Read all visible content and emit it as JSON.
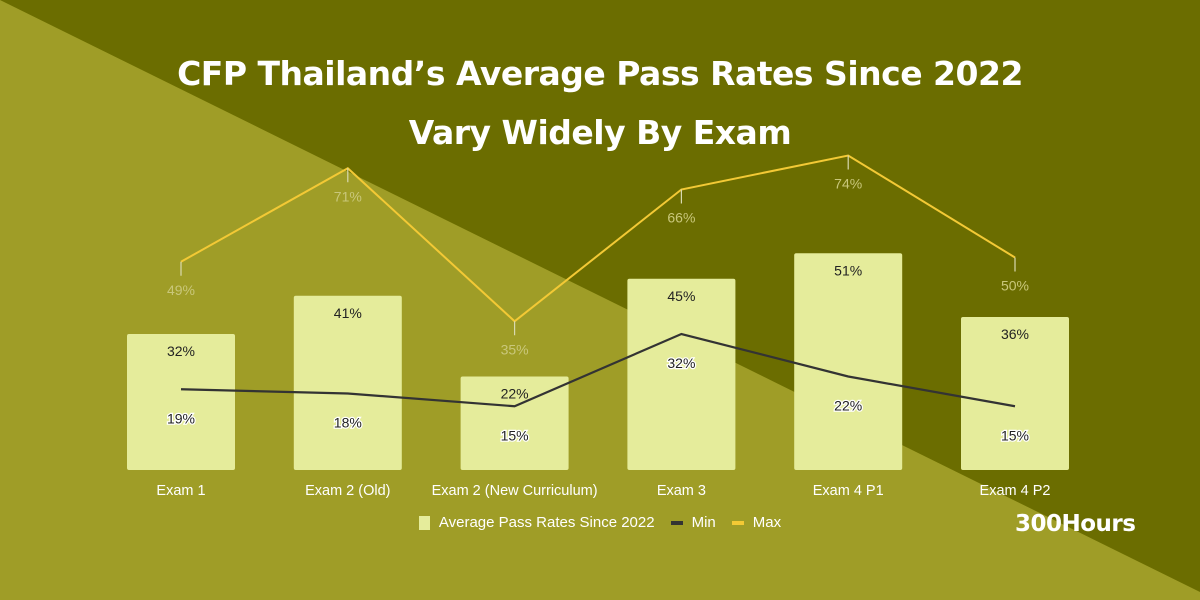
{
  "title": {
    "line1": "CFP Thailand’s Average Pass Rates Since 2022",
    "line2": "Vary Widely By Exam"
  },
  "brand": "300Hours",
  "colors": {
    "bg_dark": "#6b6d00",
    "bg_light": "#9f9d27",
    "bar": "#e5ec9b",
    "min_line": "#333333",
    "max_line": "#f3c935",
    "max_label": "#c9c77a",
    "text_dark": "#222222",
    "text_white": "#ffffff"
  },
  "legend": {
    "items": [
      {
        "label": "Average Pass Rates Since 2022",
        "kind": "box",
        "color": "#e5ec9b"
      },
      {
        "label": "Min",
        "kind": "line",
        "color": "#333333"
      },
      {
        "label": "Max",
        "kind": "line",
        "color": "#f3c935"
      }
    ]
  },
  "chart_data": {
    "type": "bar",
    "title": "CFP Thailand’s Average Pass Rates Since 2022 Vary Widely By Exam",
    "xlabel": "",
    "ylabel": "",
    "ylim": [
      0,
      100
    ],
    "grid": false,
    "legend_position": "bottom",
    "categories": [
      "Exam 1",
      "Exam 2 (Old)",
      "Exam 2 (New Curriculum)",
      "Exam 3",
      "Exam 4 P1",
      "Exam 4 P2"
    ],
    "series": [
      {
        "name": "Average Pass Rates Since 2022",
        "type": "bar",
        "values": [
          32,
          41,
          22,
          45,
          51,
          36
        ],
        "labels": [
          "32%",
          "41%",
          "22%",
          "45%",
          "51%",
          "36%"
        ]
      },
      {
        "name": "Min",
        "type": "line",
        "values": [
          19,
          18,
          15,
          32,
          22,
          15
        ],
        "labels": [
          "19%",
          "18%",
          "15%",
          "32%",
          "22%",
          "15%"
        ]
      },
      {
        "name": "Max",
        "type": "line",
        "values": [
          49,
          71,
          35,
          66,
          74,
          50
        ],
        "labels": [
          "49%",
          "71%",
          "35%",
          "66%",
          "74%",
          "50%"
        ]
      }
    ]
  }
}
